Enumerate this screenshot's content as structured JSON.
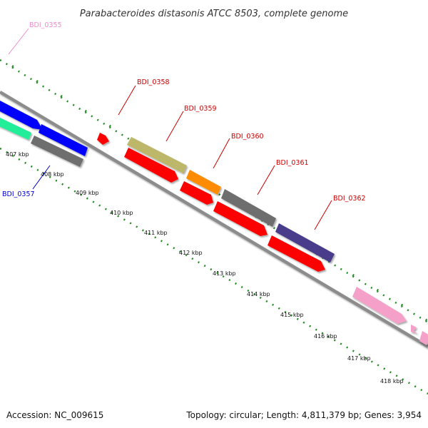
{
  "title": "Parabacteroides distasonis ATCC 8503, complete genome",
  "footer": {
    "accession": "Accession: NC_009615",
    "topology": "Topology: circular; Length: 4,811,379 bp; Genes: 3,954"
  },
  "ticks": [
    "407 kbp",
    "408 kbp",
    "409 kbp",
    "410 kbp",
    "411 kbp",
    "412 kbp",
    "413 kbp",
    "414 kbp",
    "415 kbp",
    "416 kbp",
    "417 kbp",
    "418 kbp"
  ],
  "gene_labels": [
    {
      "id": "BDI_0355",
      "color": "#f08cc8"
    },
    {
      "id": "BDI_0357",
      "color": "#0000cc"
    },
    {
      "id": "BDI_0358",
      "color": "#cc0000"
    },
    {
      "id": "BDI_0359",
      "color": "#cc0000"
    },
    {
      "id": "BDI_0360",
      "color": "#cc0000"
    },
    {
      "id": "BDI_0361",
      "color": "#cc0000"
    },
    {
      "id": "BDI_0362",
      "color": "#cc0000"
    }
  ],
  "colors": {
    "backbone": "#8c8c8c",
    "dotted_ring": "#228b22",
    "cds_red": "#ff0000",
    "cds_blue": "#0000ff",
    "cds_green": "#22ee99",
    "cds_gray": "#6e6e6e",
    "cds_khaki": "#bdb76b",
    "cds_orange": "#ff8c00",
    "cds_navy": "#483d8b",
    "cds_pink": "#f4a0c8"
  }
}
